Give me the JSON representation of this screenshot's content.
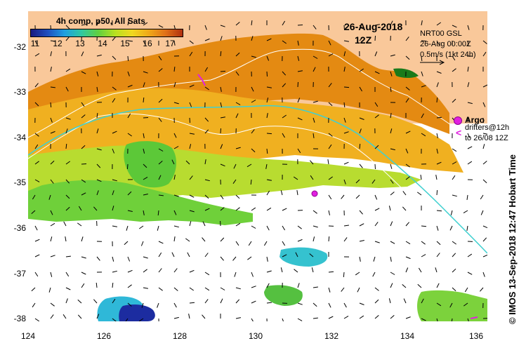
{
  "legend": {
    "title": "4h comp, p50, All Sats",
    "ticks": [
      "11",
      "12",
      "13",
      "14",
      "15",
      "16",
      "17"
    ]
  },
  "date_label": "26-Aug-2018",
  "hour_label": "12Z",
  "product_info": [
    "NRT00 GSL",
    "26-Aug 00:00Z",
    "0.5m/s (1kt 24h)"
  ],
  "argo_label": "Argo",
  "drifters_label": [
    "drifters@12h",
    "to 26/08 12Z"
  ],
  "drifter_symbol": "<",
  "y_ticks": [
    "-32",
    "-33",
    "-34",
    "-35",
    "-36",
    "-37",
    "-38"
  ],
  "x_ticks": [
    "124",
    "126",
    "128",
    "130",
    "132",
    "134",
    "136"
  ],
  "credit": "© IMOS 13-Sep-2018 12:47 Hobart Time",
  "colors": {
    "land": "#f9c89a",
    "no_data": "#ffffff",
    "argo": "#e020e0",
    "sst_warm": "#e48a12",
    "sst_mid": "#7cd23c",
    "sst_cool": "#2fc0d0",
    "coast_green": "#1a7a1a"
  }
}
